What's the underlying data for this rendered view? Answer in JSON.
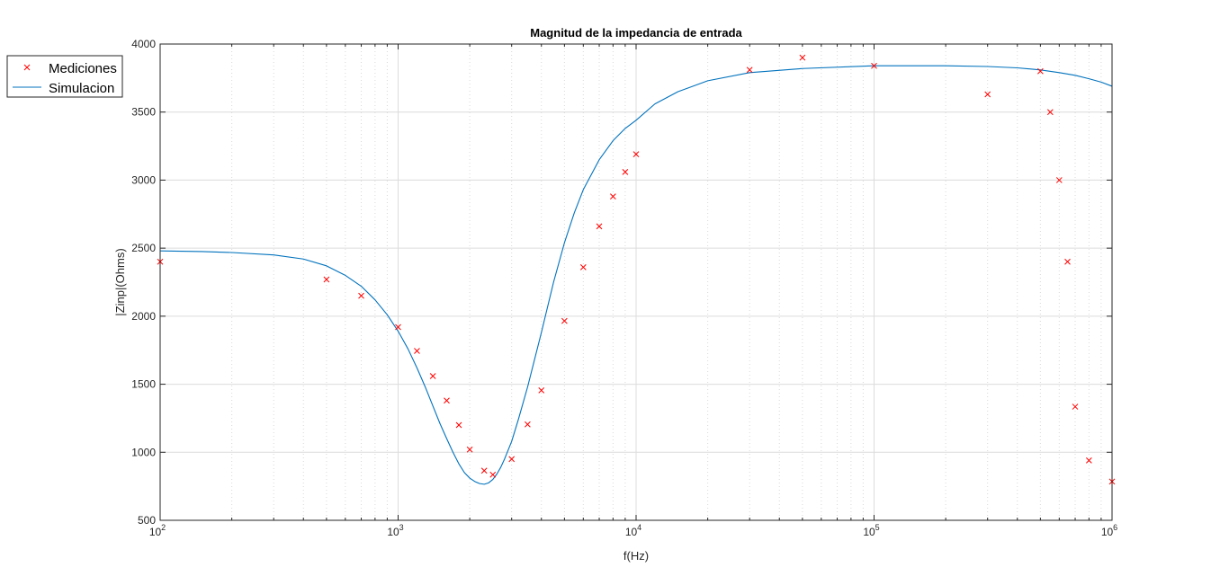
{
  "chart_data": {
    "type": "scatter",
    "title": "Magnitud de la impedancia de entrada",
    "xlabel": "f(Hz)",
    "ylabel": "|Zinp|(Ohms)",
    "x_scale": "log",
    "xlim": [
      100,
      1000000
    ],
    "ylim": [
      500,
      4000
    ],
    "x_ticks": [
      {
        "base": "10",
        "exp": "2"
      },
      {
        "base": "10",
        "exp": "3"
      },
      {
        "base": "10",
        "exp": "4"
      },
      {
        "base": "10",
        "exp": "5"
      },
      {
        "base": "10",
        "exp": "6"
      }
    ],
    "y_ticks": [
      500,
      1000,
      1500,
      2000,
      2500,
      3000,
      3500,
      4000
    ],
    "grid": true,
    "minor_grid_x": true,
    "legend_position": "outside-top-left",
    "series": [
      {
        "name": "Mediciones",
        "kind": "markers",
        "marker": "x",
        "color": "#ff0000",
        "x": [
          100,
          500,
          700,
          1000,
          1200,
          1400,
          1600,
          1800,
          2000,
          2300,
          2500,
          3000,
          3500,
          4000,
          5000,
          6000,
          7000,
          8000,
          9000,
          10000,
          30000,
          50000,
          100000,
          300000,
          500000,
          550000,
          600000,
          650000,
          700000,
          800000,
          1000000
        ],
        "y": [
          2400,
          2270,
          2150,
          1920,
          1745,
          1560,
          1380,
          1200,
          1020,
          865,
          835,
          950,
          1205,
          1455,
          1965,
          2360,
          2660,
          2880,
          3060,
          3190,
          3810,
          3900,
          3840,
          3630,
          3800,
          3500,
          3000,
          2400,
          1335,
          940,
          785
        ]
      },
      {
        "name": "Simulacion",
        "kind": "line",
        "color": "#0072bd",
        "x": [
          100,
          150,
          200,
          300,
          400,
          500,
          600,
          700,
          800,
          900,
          1000,
          1100,
          1200,
          1300,
          1400,
          1500,
          1600,
          1700,
          1800,
          1900,
          2000,
          2100,
          2200,
          2300,
          2400,
          2500,
          2600,
          2700,
          2800,
          3000,
          3200,
          3500,
          4000,
          4500,
          5000,
          5500,
          6000,
          7000,
          8000,
          9000,
          10000,
          12000,
          15000,
          20000,
          30000,
          50000,
          100000,
          200000,
          300000,
          400000,
          500000,
          600000,
          700000,
          800000,
          900000,
          1000000
        ],
        "y": [
          2480,
          2475,
          2468,
          2450,
          2420,
          2370,
          2300,
          2220,
          2120,
          2010,
          1890,
          1760,
          1620,
          1480,
          1340,
          1210,
          1100,
          1000,
          915,
          850,
          810,
          785,
          770,
          765,
          775,
          800,
          840,
          890,
          950,
          1080,
          1240,
          1480,
          1880,
          2250,
          2540,
          2760,
          2930,
          3150,
          3290,
          3380,
          3440,
          3560,
          3650,
          3730,
          3790,
          3820,
          3840,
          3840,
          3835,
          3825,
          3810,
          3790,
          3770,
          3745,
          3720,
          3690
        ]
      }
    ]
  }
}
